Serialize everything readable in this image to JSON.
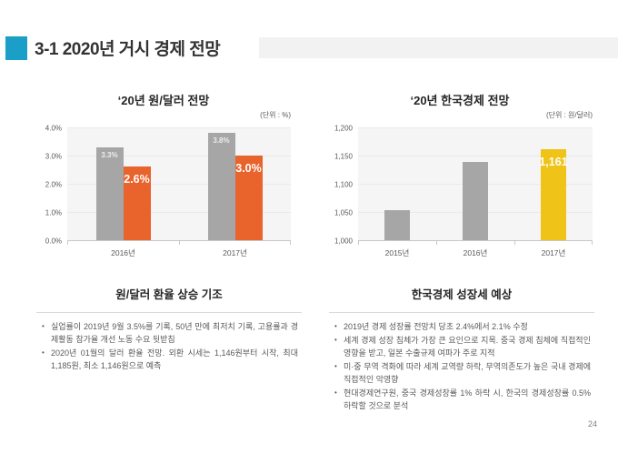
{
  "slide": {
    "title": "3-1 2020년 거시 경제 전망",
    "page_number": "24"
  },
  "theme": {
    "accent_teal": "#1B9FC8",
    "title_band_gray": "#F2F2F2",
    "bar_gray": "#A6A6A6",
    "bar_orange": "#E9632C",
    "bar_yellow": "#F0C318",
    "plot_background": "#F5F5F5",
    "gridline": "#EAEAEA",
    "axis_line": "#C8C8C8",
    "divider": "#D9D9D9",
    "text_gray": "#595959"
  },
  "chart_data": [
    {
      "type": "bar",
      "title": "‘20년 원/달러 전망",
      "unit_label": "(단위 : %)",
      "categories": [
        "2016년",
        "2017년"
      ],
      "series": [
        {
          "name": "gray",
          "color": "#A6A6A6",
          "values": [
            3.3,
            3.8
          ],
          "data_labels": [
            "3.3%",
            "3.8%"
          ],
          "label_size": "sm"
        },
        {
          "name": "orange",
          "color": "#E9632C",
          "values": [
            2.6,
            3.0
          ],
          "data_labels": [
            "2.6%",
            "3.0%"
          ],
          "label_size": "lg"
        }
      ],
      "ylim": [
        0,
        4
      ],
      "yticks": [
        "0.0%",
        "1.0%",
        "2.0%",
        "3.0%",
        "4.0%"
      ],
      "grid": true,
      "legend": "none"
    },
    {
      "type": "bar",
      "title": "‘20년 한국경제 전망",
      "unit_label": "(단위 : 원/달러)",
      "categories": [
        "2015년",
        "2016년",
        "2017년"
      ],
      "series": [
        {
          "name": "values",
          "colors": [
            "#A6A6A6",
            "#A6A6A6",
            "#F0C318"
          ],
          "values": [
            1053,
            1138,
            1161
          ],
          "data_labels": [
            "",
            "",
            "1,161"
          ],
          "label_size": "lg"
        }
      ],
      "ylim": [
        1000,
        1200
      ],
      "yticks": [
        "1,000",
        "1,050",
        "1,100",
        "1,150",
        "1,200"
      ],
      "grid": true,
      "legend": "none"
    }
  ],
  "sections": [
    {
      "heading": "원/달러 환율 상승 기조",
      "bullets": [
        "실업률이 2019년 9월 3.5%를 기록, 50년 만에 최저치 기록, 고용률과 경제활동 참가율 개선 노동 수요 뒷받침",
        "2020년 01월의 달러 환율 전망. 외환 시세는 1,146원부터 시작, 최대 1,185원, 최소 1,146원으로 예측"
      ]
    },
    {
      "heading": "한국경제 성장세 예상",
      "bullets": [
        "2019년 경제 성장률 전망치 당초 2.4%에서 2.1% 수정",
        "세계 경제 성장 침체가 가장 큰 요인으로 지목. 중국 경제 침체에 직접적인 영향을 받고, 일본 수출규제 여파가 주로 지적",
        "미·중 무역 격화에 따라 세계 교역량 하락, 무역의존도가 높은 국내 경제에 직접적인 악영향",
        "현대경제연구원, 중국 경제성장률 1% 하락 시, 한국의 경제성장률 0.5% 하락할 것으로 분석"
      ]
    }
  ]
}
